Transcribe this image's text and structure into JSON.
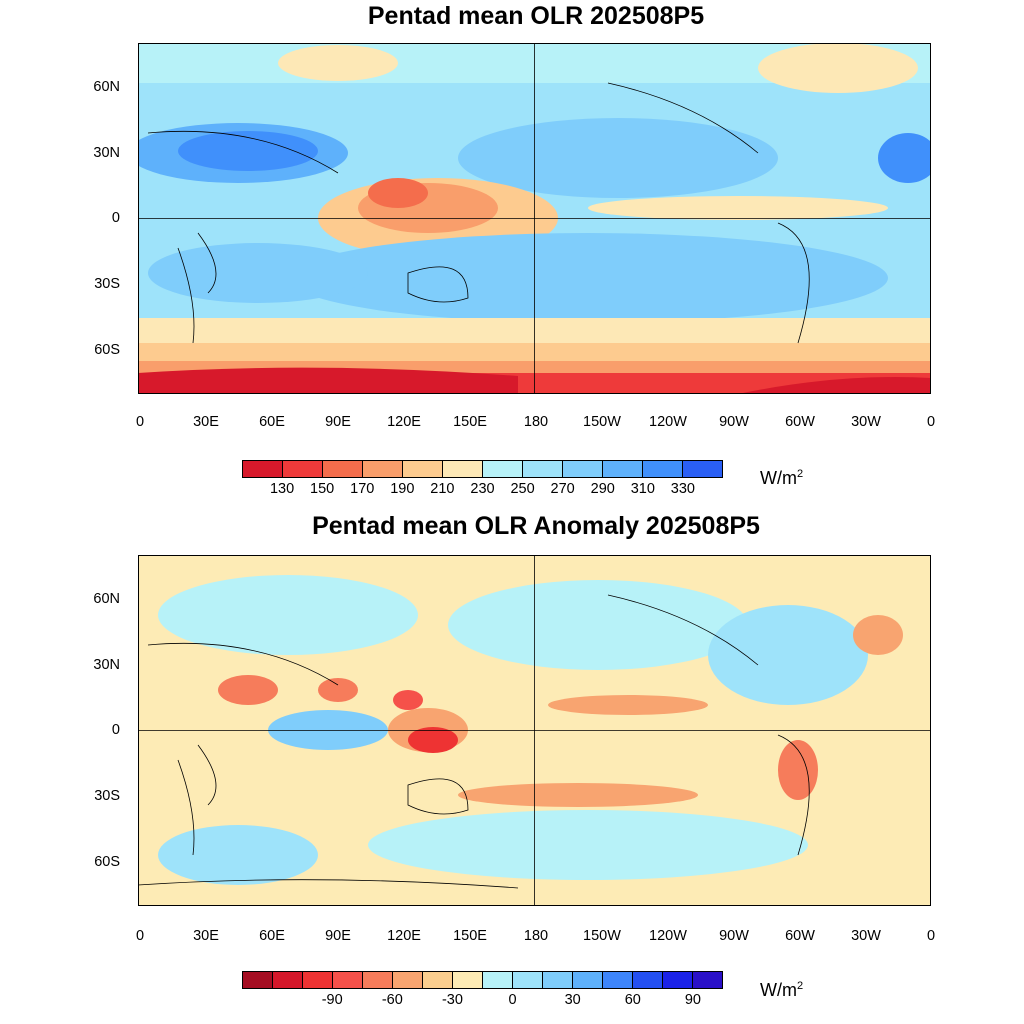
{
  "panels": [
    {
      "title": "Pentad mean OLR 202508P5",
      "units": "W/m",
      "units_sup": "2",
      "colorbar": {
        "colors": [
          "#d7192b",
          "#ee3a3a",
          "#f46d4c",
          "#f99e6b",
          "#fdcb8f",
          "#fde8b6",
          "#b7f2f8",
          "#9ee3fa",
          "#7fcdfb",
          "#5eb1fb",
          "#4090fb",
          "#2a5ff5"
        ],
        "labels": [
          "130",
          "150",
          "170",
          "190",
          "210",
          "230",
          "250",
          "270",
          "290",
          "310",
          "330"
        ]
      }
    },
    {
      "title": "Pentad mean OLR Anomaly 202508P5",
      "units": "W/m",
      "units_sup": "2",
      "colorbar": {
        "colors": [
          "#a50d22",
          "#d4172a",
          "#ee3333",
          "#f5514a",
          "#f67c5b",
          "#f8a470",
          "#fbce8f",
          "#fdebb5",
          "#b7f2f8",
          "#9ee3fa",
          "#7fcdfb",
          "#5eb1fb",
          "#3d85fb",
          "#2450f2",
          "#1b22e8",
          "#2a10c8"
        ],
        "labels": [
          "",
          "",
          "-90",
          "",
          "-60",
          "",
          "-30",
          "",
          "0",
          "",
          "30",
          "",
          "60",
          "",
          "90"
        ]
      }
    }
  ],
  "axes": {
    "x_ticks": [
      "0",
      "30E",
      "60E",
      "90E",
      "120E",
      "150E",
      "180",
      "150W",
      "120W",
      "90W",
      "60W",
      "30W",
      "0"
    ],
    "y_ticks": [
      "60N",
      "30N",
      "0",
      "30S",
      "60S"
    ]
  }
}
